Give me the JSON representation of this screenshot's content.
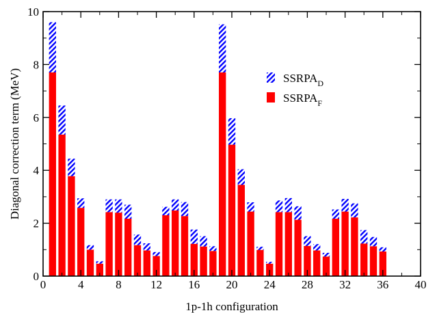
{
  "chart_data": {
    "type": "bar",
    "stacked": true,
    "xlabel": "1p-1h configuration",
    "ylabel": "Diagonal correction term (MeV)",
    "xlim": [
      0,
      40
    ],
    "ylim": [
      0,
      10
    ],
    "xticks": [
      0,
      4,
      8,
      12,
      16,
      20,
      24,
      28,
      32,
      36,
      40
    ],
    "yticks": [
      0,
      2,
      4,
      6,
      8,
      10
    ],
    "grid": false,
    "legend_position": "upper-right",
    "x": [
      1,
      2,
      3,
      4,
      5,
      6,
      7,
      8,
      9,
      10,
      11,
      12,
      13,
      14,
      15,
      16,
      17,
      18,
      19,
      20,
      21,
      22,
      23,
      24,
      25,
      26,
      27,
      28,
      29,
      30,
      31,
      32,
      33,
      34,
      35,
      36
    ],
    "series": [
      {
        "name": "SSRPA_F",
        "legend_base": "SSRPA",
        "legend_sub": "F",
        "color": "#ff0000",
        "pattern": "solid",
        "values": [
          7.7,
          5.35,
          3.78,
          2.58,
          1.0,
          0.47,
          2.42,
          2.4,
          2.17,
          1.17,
          0.97,
          0.76,
          2.3,
          2.48,
          2.27,
          1.22,
          1.12,
          0.95,
          7.7,
          4.97,
          3.45,
          2.44,
          0.99,
          0.47,
          2.42,
          2.42,
          2.13,
          1.14,
          0.97,
          0.74,
          2.17,
          2.44,
          2.22,
          1.23,
          1.13,
          0.93
        ]
      },
      {
        "name": "SSRPA_D",
        "legend_base": "SSRPA",
        "legend_sub": "D",
        "color": "#0000ff",
        "pattern": "hatch",
        "values": [
          1.9,
          1.1,
          0.66,
          0.36,
          0.17,
          0.09,
          0.48,
          0.5,
          0.53,
          0.4,
          0.27,
          0.15,
          0.32,
          0.42,
          0.53,
          0.54,
          0.39,
          0.18,
          1.82,
          1.0,
          0.59,
          0.35,
          0.12,
          0.07,
          0.44,
          0.53,
          0.51,
          0.37,
          0.24,
          0.14,
          0.35,
          0.48,
          0.53,
          0.51,
          0.35,
          0.16
        ]
      }
    ]
  }
}
